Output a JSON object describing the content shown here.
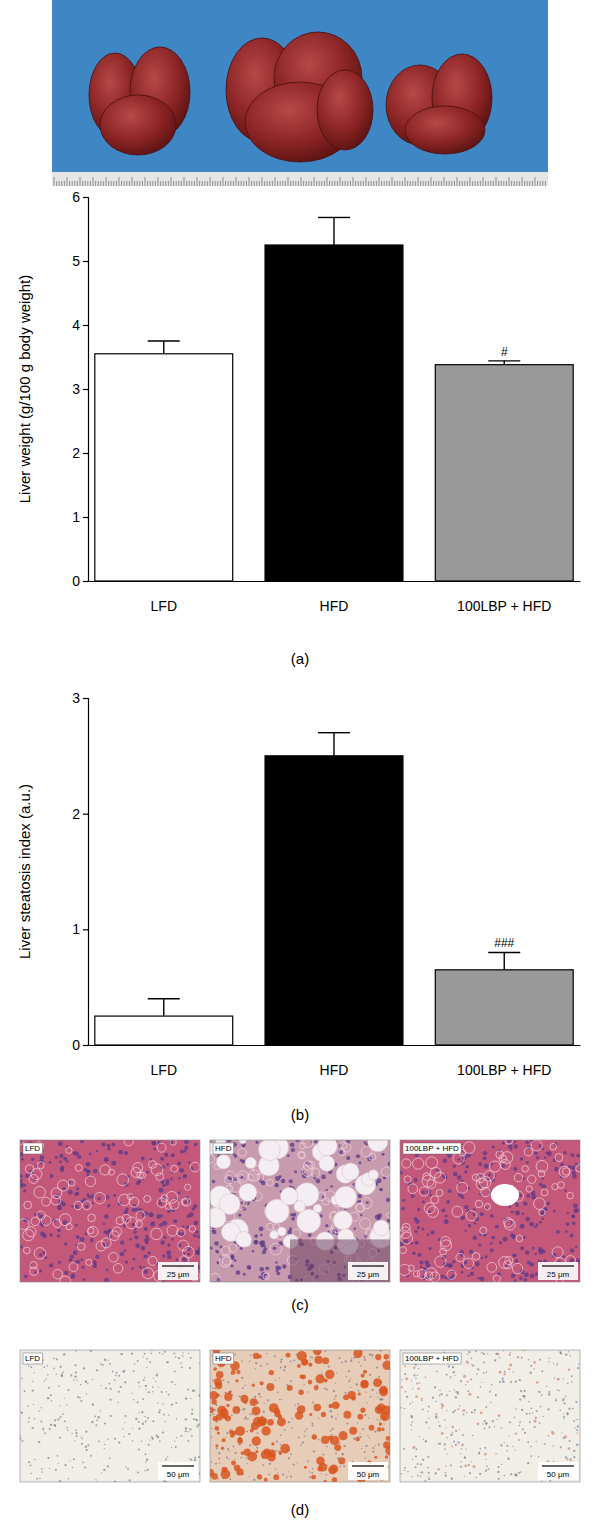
{
  "chart_data": [
    {
      "type": "bar",
      "panel_label": "(a)",
      "y_label": "Liver weight (g/100 g body weight)",
      "categories": [
        "LFD",
        "HFD",
        "100LBP + HFD"
      ],
      "values": [
        3.55,
        5.25,
        3.38
      ],
      "errors": [
        0.2,
        0.43,
        0.06
      ],
      "significance": [
        null,
        null,
        "#"
      ],
      "colors": [
        "#ffffff",
        "#000000",
        "#999999"
      ],
      "ylim": [
        0,
        6
      ],
      "yticks": [
        0,
        1,
        2,
        3,
        4,
        5,
        6
      ]
    },
    {
      "type": "bar",
      "panel_label": "(b)",
      "y_label": "Liver steatosis index (a.u.)",
      "categories": [
        "LFD",
        "HFD",
        "100LBP + HFD"
      ],
      "values": [
        0.25,
        2.5,
        0.65
      ],
      "errors": [
        0.15,
        0.2,
        0.15
      ],
      "significance": [
        null,
        null,
        "###"
      ],
      "colors": [
        "#ffffff",
        "#000000",
        "#999999"
      ],
      "ylim": [
        0,
        3
      ],
      "yticks": [
        0,
        1,
        2,
        3
      ]
    }
  ],
  "image_panels": [
    {
      "panel_label": "(c)",
      "images": [
        {
          "label": "LFD",
          "scale_bar": "25 μm"
        },
        {
          "label": "HFD",
          "scale_bar": "25 μm"
        },
        {
          "label": "100LBP + HFD",
          "scale_bar": "25 μm"
        }
      ]
    },
    {
      "panel_label": "(d)",
      "images": [
        {
          "label": "LFD",
          "scale_bar": "50 μm"
        },
        {
          "label": "HFD",
          "scale_bar": "50 μm"
        },
        {
          "label": "100LBP + HFD",
          "scale_bar": "50 μm"
        }
      ]
    }
  ]
}
